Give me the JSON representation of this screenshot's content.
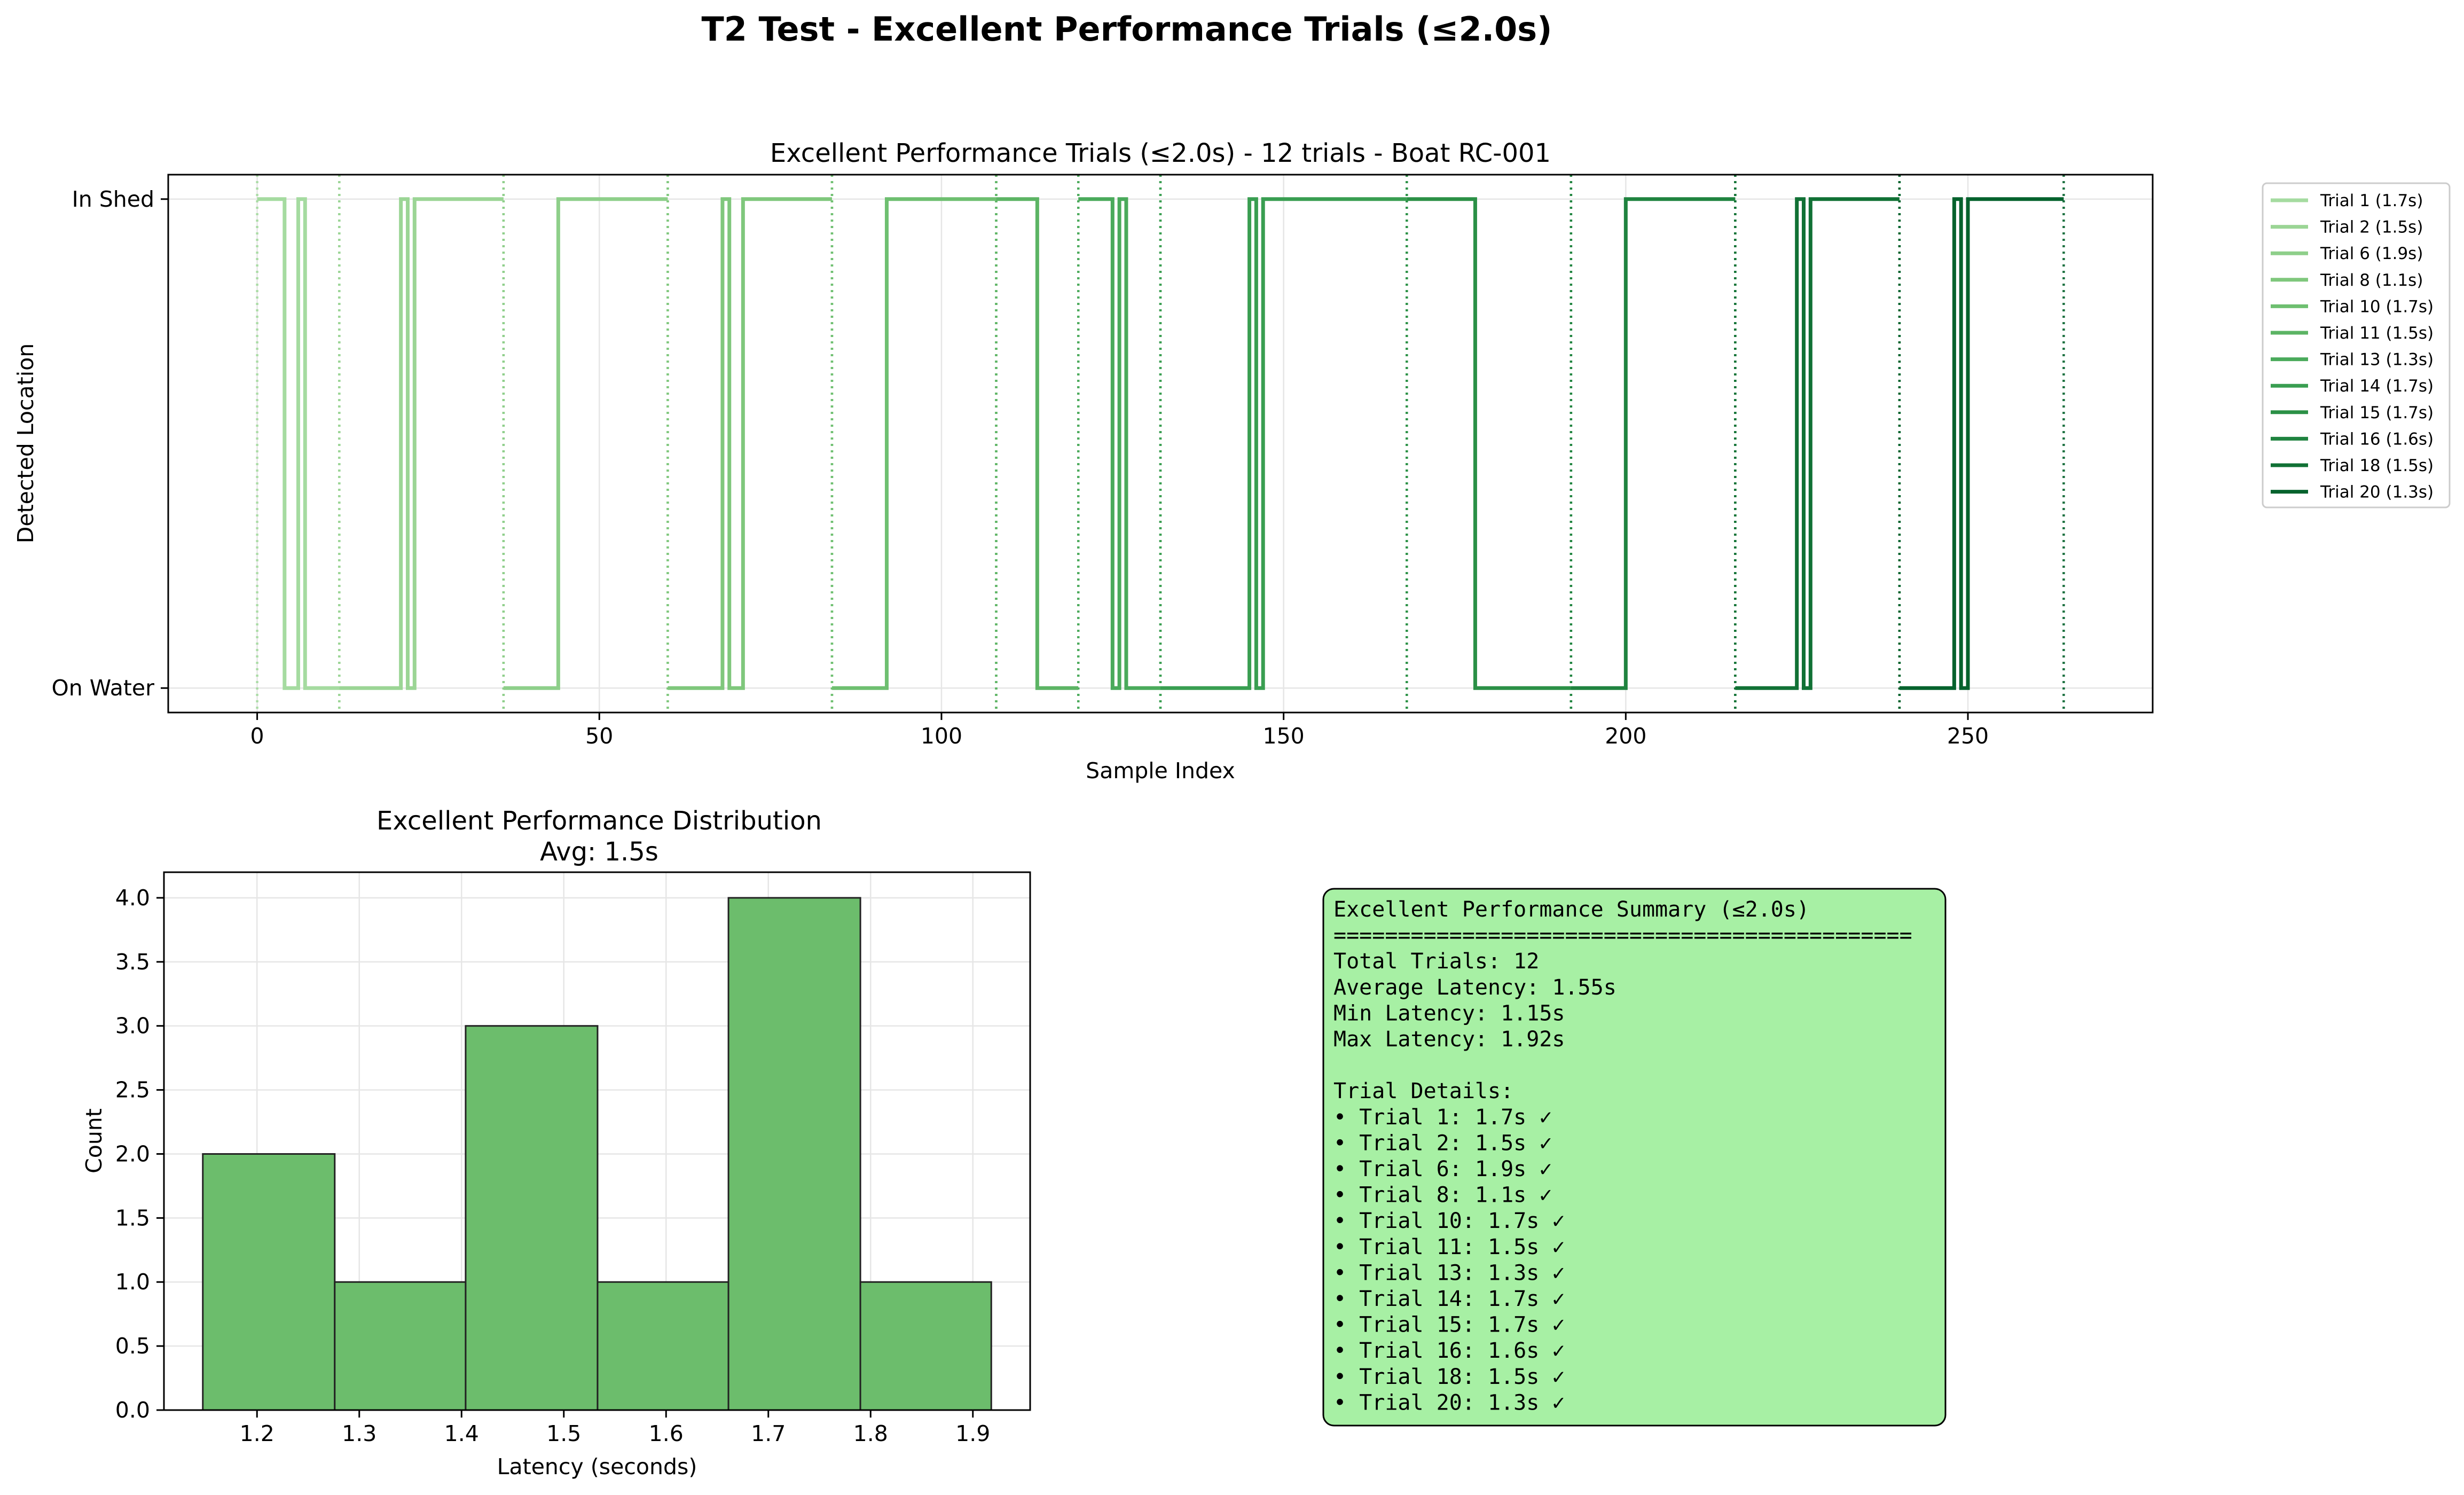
{
  "figure_title": "T2 Test - Excellent Performance Trials (≤2.0s)",
  "colors": {
    "trial_colors": [
      "#a5dba0",
      "#9bd595",
      "#8ecf8a",
      "#7fc77c",
      "#6ebf70",
      "#5cb464",
      "#4aaa5b",
      "#399e51",
      "#2b9046",
      "#1f833f",
      "#117135",
      "#05622d"
    ],
    "hist_fill": "#6cbd6c",
    "summary_bg": "#a7f0a4",
    "grid": "#e6e6e6"
  },
  "chart_data": [
    {
      "type": "line",
      "title": "Excellent Performance Trials (≤2.0s) - 12 trials - Boat RC-001",
      "xlabel": "Sample Index",
      "ylabel": "Detected Location",
      "xlim": [
        -13,
        277
      ],
      "ylim": [
        -0.05,
        1.05
      ],
      "xticks": [
        0,
        50,
        100,
        150,
        200,
        250
      ],
      "yticks": [
        {
          "value": 0,
          "label": "On Water"
        },
        {
          "value": 1,
          "label": "In Shed"
        }
      ],
      "grid": true,
      "legend_position": "outside-right",
      "series": [
        {
          "name": "Trial 1 (1.7s)",
          "step_x": [
            0,
            4,
            6,
            7,
            12
          ],
          "step_y": [
            1,
            0,
            1,
            0,
            0
          ],
          "markers": [
            0,
            12
          ]
        },
        {
          "name": "Trial 2 (1.5s)",
          "step_x": [
            12,
            21,
            22,
            23,
            36
          ],
          "step_y": [
            0,
            1,
            0,
            1,
            1
          ],
          "markers": [
            12,
            36
          ]
        },
        {
          "name": "Trial 6 (1.9s)",
          "step_x": [
            36,
            44,
            60
          ],
          "step_y": [
            0,
            1,
            1
          ],
          "markers": [
            36,
            60
          ]
        },
        {
          "name": "Trial 8 (1.1s)",
          "step_x": [
            60,
            68,
            69,
            71,
            84
          ],
          "step_y": [
            0,
            1,
            0,
            1,
            1
          ],
          "markers": [
            60,
            84
          ]
        },
        {
          "name": "Trial 10 (1.7s)",
          "step_x": [
            84,
            92,
            108
          ],
          "step_y": [
            0,
            1,
            1
          ],
          "markers": [
            84,
            108
          ]
        },
        {
          "name": "Trial 11 (1.5s)",
          "step_x": [
            108,
            114,
            120
          ],
          "step_y": [
            1,
            0,
            0
          ],
          "markers": [
            108,
            120
          ]
        },
        {
          "name": "Trial 13 (1.3s)",
          "step_x": [
            120,
            125,
            126,
            127,
            132
          ],
          "step_y": [
            1,
            0,
            1,
            0,
            0
          ],
          "markers": [
            120,
            132
          ]
        },
        {
          "name": "Trial 14 (1.7s)",
          "step_x": [
            132,
            145,
            146,
            147,
            168
          ],
          "step_y": [
            0,
            1,
            0,
            1,
            1
          ],
          "markers": [
            132,
            168
          ]
        },
        {
          "name": "Trial 15 (1.7s)",
          "step_x": [
            168,
            178,
            192
          ],
          "step_y": [
            1,
            0,
            0
          ],
          "markers": [
            168,
            192
          ]
        },
        {
          "name": "Trial 16 (1.6s)",
          "step_x": [
            192,
            200,
            216
          ],
          "step_y": [
            0,
            1,
            1
          ],
          "markers": [
            192,
            216
          ]
        },
        {
          "name": "Trial 18 (1.5s)",
          "step_x": [
            216,
            225,
            226,
            227,
            240
          ],
          "step_y": [
            0,
            1,
            0,
            1,
            1
          ],
          "markers": [
            216,
            240
          ]
        },
        {
          "name": "Trial 20 (1.3s)",
          "step_x": [
            240,
            248,
            249,
            250,
            264
          ],
          "step_y": [
            0,
            1,
            0,
            1,
            1
          ],
          "markers": [
            240,
            264
          ]
        }
      ]
    },
    {
      "type": "bar",
      "title": "Excellent Performance Distribution",
      "subtitle": "Avg: 1.5s",
      "xlabel": "Latency (seconds)",
      "ylabel": "Count",
      "bin_edges": [
        1.147,
        1.276,
        1.404,
        1.533,
        1.661,
        1.79,
        1.918
      ],
      "values": [
        2,
        1,
        3,
        1,
        4,
        1
      ],
      "xlim": [
        1.109,
        1.956
      ],
      "ylim": [
        0,
        4.2
      ],
      "xticks": [
        1.2,
        1.3,
        1.4,
        1.5,
        1.6,
        1.7,
        1.8,
        1.9
      ],
      "yticks": [
        0.0,
        0.5,
        1.0,
        1.5,
        2.0,
        2.5,
        3.0,
        3.5,
        4.0
      ],
      "grid": true
    }
  ],
  "summary": {
    "lines": [
      "Excellent Performance Summary (≤2.0s)",
      "=============================================",
      "Total Trials: 12",
      "Average Latency: 1.55s",
      "Min Latency: 1.15s",
      "Max Latency: 1.92s",
      "",
      "Trial Details:",
      "• Trial 1: 1.7s ✓",
      "• Trial 2: 1.5s ✓",
      "• Trial 6: 1.9s ✓",
      "• Trial 8: 1.1s ✓",
      "• Trial 10: 1.7s ✓",
      "• Trial 11: 1.5s ✓",
      "• Trial 13: 1.3s ✓",
      "• Trial 14: 1.7s ✓",
      "• Trial 15: 1.7s ✓",
      "• Trial 16: 1.6s ✓",
      "• Trial 18: 1.5s ✓",
      "• Trial 20: 1.3s ✓"
    ]
  }
}
